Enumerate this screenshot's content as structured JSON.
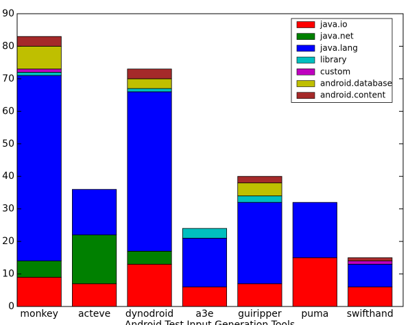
{
  "chart_data": {
    "type": "stacked_bar",
    "xlabel": "Android Test Input Generation Tools",
    "categories": [
      "monkey",
      "acteve",
      "dynodroid",
      "a3e",
      "guiripper",
      "puma",
      "swifthand"
    ],
    "series": [
      {
        "name": "java.io",
        "color": "#ff0000",
        "values": [
          9,
          7,
          13,
          6,
          7,
          15,
          6
        ]
      },
      {
        "name": "java.net",
        "color": "#008000",
        "values": [
          5,
          15,
          4,
          0,
          0,
          0,
          0
        ]
      },
      {
        "name": "java.lang",
        "color": "#0000ff",
        "values": [
          57,
          14,
          49,
          15,
          25,
          17,
          7
        ]
      },
      {
        "name": "library",
        "color": "#00bfbf",
        "values": [
          1,
          0,
          1,
          3,
          2,
          0,
          0
        ]
      },
      {
        "name": "custom",
        "color": "#bf00bf",
        "values": [
          1,
          0,
          0,
          0,
          0,
          0,
          1
        ]
      },
      {
        "name": "android.database",
        "color": "#bfbf00",
        "values": [
          7,
          0,
          3,
          0,
          4,
          0,
          0
        ]
      },
      {
        "name": "android.content",
        "color": "#a52a2a",
        "values": [
          3,
          0,
          3,
          0,
          2,
          0,
          1
        ]
      }
    ],
    "ylim": [
      0,
      90
    ],
    "yticks": [
      0,
      10,
      20,
      30,
      40,
      50,
      60,
      70,
      80,
      90
    ],
    "legend": "upper right"
  }
}
